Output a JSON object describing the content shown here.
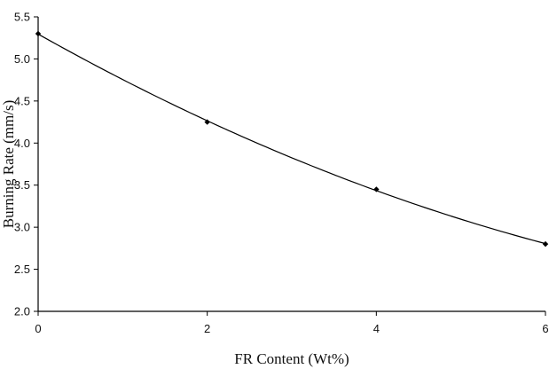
{
  "chart_data": {
    "type": "line",
    "title": "",
    "xlabel": "FR Content (Wt%)",
    "ylabel": "Burning Rate (mm/s)",
    "xlim": [
      0,
      6
    ],
    "ylim": [
      2.0,
      5.5
    ],
    "x_ticks": [
      0,
      2,
      4,
      6
    ],
    "y_ticks": [
      2.0,
      2.5,
      3.0,
      3.5,
      4.0,
      4.5,
      5.0,
      5.5
    ],
    "x_tick_labels": [
      "0",
      "2",
      "4",
      "6"
    ],
    "y_tick_labels": [
      "2.0",
      "2.5",
      "3.0",
      "3.5",
      "4.0",
      "4.5",
      "5.0",
      "5.5"
    ],
    "grid": false,
    "legend": "none",
    "series": [
      {
        "x": [
          0,
          2,
          4,
          6
        ],
        "y": [
          5.3,
          4.25,
          3.45,
          2.8
        ]
      }
    ],
    "trendline": "smooth"
  }
}
